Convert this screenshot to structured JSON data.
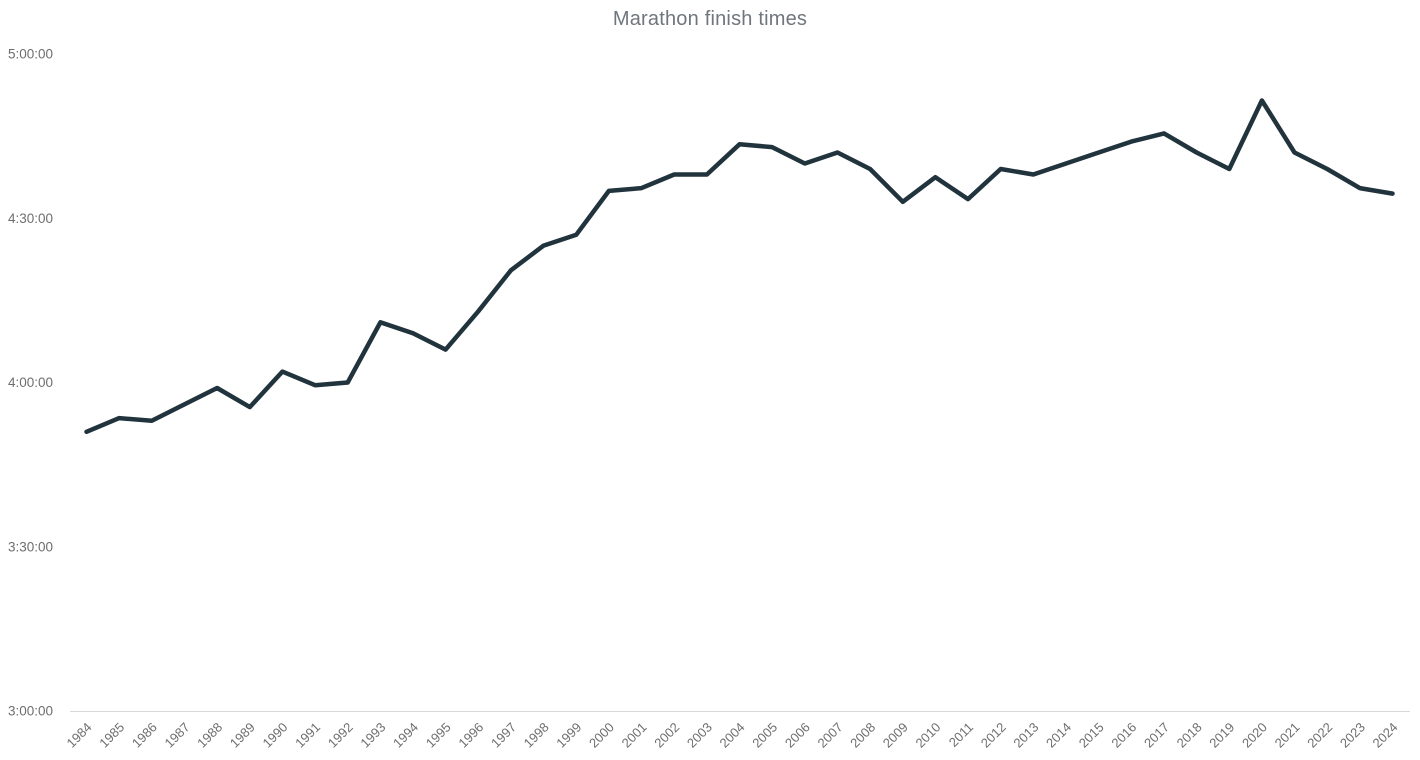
{
  "title": "Marathon finish times",
  "colors": {
    "line": "#21333c",
    "title_text": "#6f767c",
    "tick_text": "#6e6e6e",
    "axis_line": "#d8d8d8",
    "background": "#ffffff"
  },
  "chart_data": {
    "type": "line",
    "title": "Marathon finish times",
    "xlabel": "",
    "ylabel": "",
    "legend": "none",
    "grid": false,
    "x_label_rotation_deg": -45,
    "x": [
      1984,
      1985,
      1986,
      1987,
      1988,
      1989,
      1990,
      1991,
      1992,
      1993,
      1994,
      1995,
      1996,
      1997,
      1998,
      1999,
      2000,
      2001,
      2002,
      2003,
      2004,
      2005,
      2006,
      2007,
      2008,
      2009,
      2010,
      2011,
      2012,
      2013,
      2014,
      2015,
      2016,
      2017,
      2018,
      2019,
      2020,
      2021,
      2022,
      2023,
      2024
    ],
    "series": [
      {
        "name": "Marathon finish time",
        "unit": "minutes",
        "values": [
          231,
          233.5,
          233,
          236,
          239,
          235.5,
          242,
          239.5,
          240,
          251,
          249,
          246,
          253,
          260.5,
          265,
          267,
          275,
          275.5,
          278,
          278,
          283.5,
          283,
          280,
          282,
          279,
          273,
          277.5,
          273.5,
          279,
          278,
          280,
          282,
          284,
          285.5,
          282,
          279,
          291.5,
          282,
          279,
          275.5,
          274.5
        ]
      }
    ],
    "ylim_minutes": [
      180,
      300
    ],
    "y_tick_minutes": [
      300,
      270,
      240,
      210,
      180
    ],
    "y_tick_labels": [
      "5:00:00",
      "4:30:00",
      "4:00:00",
      "3:30:00",
      "3:00:00"
    ]
  }
}
